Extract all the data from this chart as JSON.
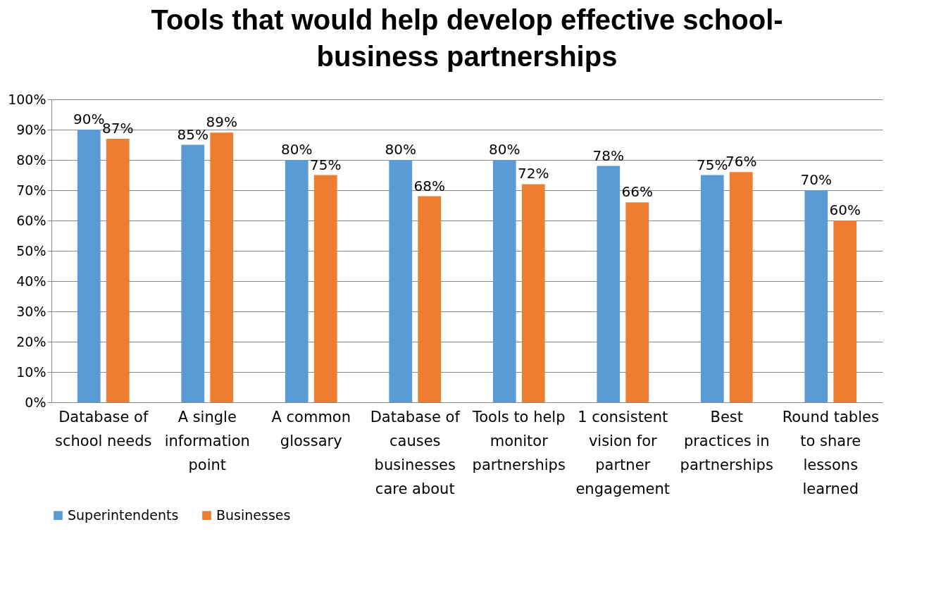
{
  "chart_data": {
    "type": "bar",
    "title": "Tools that would help develop effective school-business partnerships",
    "categories": [
      "Database of school needs",
      "A single information point",
      "A common glossary",
      "Database of causes businesses care about",
      "Tools to help monitor partnerships",
      "1 consistent vision for partner engagement",
      "Best practices in partnerships",
      "Round tables to share lessons learned"
    ],
    "series": [
      {
        "name": "Superintendents",
        "color": "#5b9bd5",
        "values": [
          90,
          85,
          80,
          80,
          80,
          78,
          75,
          70
        ],
        "value_labels": [
          "90%",
          "85%",
          "80%",
          "80%",
          "80%",
          "78%",
          "75%",
          "70%"
        ]
      },
      {
        "name": "Businesses",
        "color": "#ed7d31",
        "values": [
          87,
          89,
          75,
          68,
          72,
          66,
          76,
          60
        ],
        "value_labels": [
          "87%",
          "89%",
          "75%",
          "68%",
          "72%",
          "66%",
          "76%",
          "60%"
        ]
      }
    ],
    "ylim": [
      0,
      100
    ],
    "yticks": [
      {
        "value": 0,
        "label": "0%"
      },
      {
        "value": 10,
        "label": "10%"
      },
      {
        "value": 20,
        "label": "20%"
      },
      {
        "value": 30,
        "label": "30%"
      },
      {
        "value": 40,
        "label": "40%"
      },
      {
        "value": 50,
        "label": "50%"
      },
      {
        "value": 60,
        "label": "60%"
      },
      {
        "value": 70,
        "label": "70%"
      },
      {
        "value": 80,
        "label": "80%"
      },
      {
        "value": 90,
        "label": "90%"
      },
      {
        "value": 100,
        "label": "100%"
      }
    ],
    "grid": "y",
    "legend": "bottom"
  }
}
